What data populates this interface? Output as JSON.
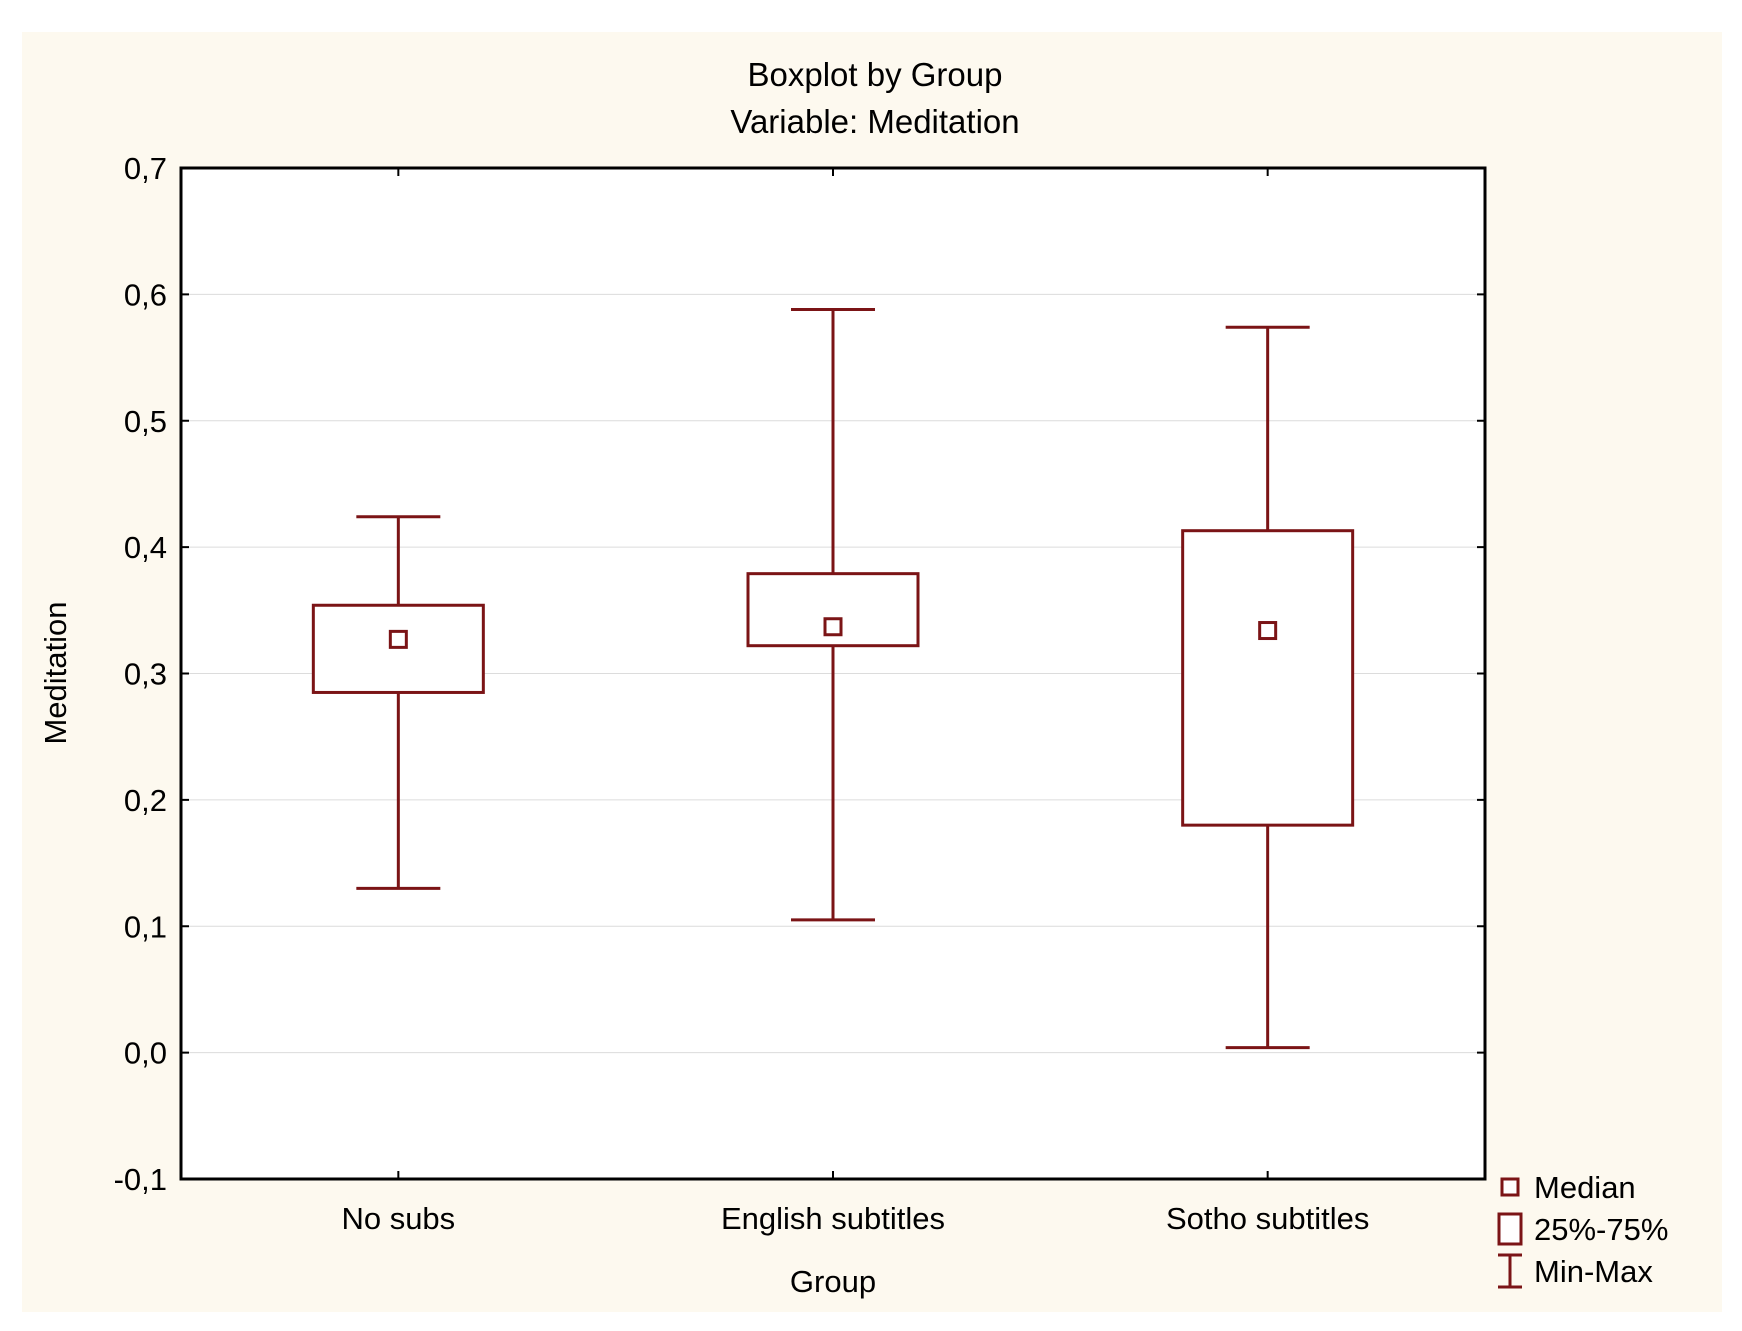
{
  "chart_data": {
    "type": "boxplot",
    "title": "Boxplot by Group",
    "subtitle": "Variable: Meditation",
    "xlabel": "Group",
    "ylabel": "Meditation",
    "ylim": [
      -0.1,
      0.7
    ],
    "yticks": [
      "-0,1",
      "0,0",
      "0,1",
      "0,2",
      "0,3",
      "0,4",
      "0,5",
      "0,6",
      "0,7"
    ],
    "ytick_values": [
      -0.1,
      0.0,
      0.1,
      0.2,
      0.3,
      0.4,
      0.5,
      0.6,
      0.7
    ],
    "grid": true,
    "legend_position": "bottom-right",
    "legend": [
      "Median",
      "25%-75%",
      "Min-Max"
    ],
    "color": "#7b1416",
    "categories": [
      "No subs",
      "English subtitles",
      "Sotho subtitles"
    ],
    "groups": [
      {
        "category": "No subs",
        "min": 0.13,
        "q1": 0.285,
        "median": 0.327,
        "q3": 0.354,
        "max": 0.424
      },
      {
        "category": "English subtitles",
        "min": 0.105,
        "q1": 0.322,
        "median": 0.337,
        "q3": 0.379,
        "max": 0.588
      },
      {
        "category": "Sotho subtitles",
        "min": 0.004,
        "q1": 0.18,
        "median": 0.334,
        "q3": 0.413,
        "max": 0.574
      }
    ]
  }
}
